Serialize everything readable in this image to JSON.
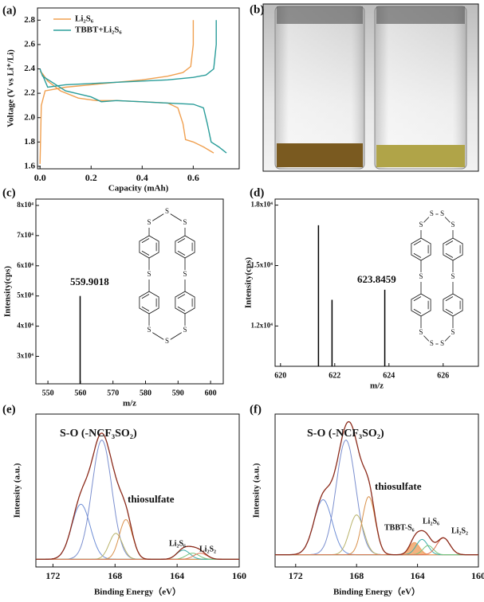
{
  "photo_label": "(b)",
  "structure_atom": "S",
  "chart_data": [
    {
      "type": "line",
      "label": "(a)",
      "x_label": "Capacity (mAh)",
      "y_label": "Voltage (V vs Li⁺/Li)",
      "xlim": [
        -0.01,
        0.78
      ],
      "ylim": [
        1.58,
        2.9
      ],
      "xticks": [
        {
          "value": 0,
          "label": "0.0"
        },
        0.2,
        0.4,
        0.6
      ],
      "yticks": [
        1.6,
        1.8,
        {
          "value": 2,
          "label": "2.0"
        },
        2.2,
        2.4,
        2.6,
        2.8
      ],
      "legend": "top-left",
      "series": [
        {
          "name": "Li₂S₆",
          "color": "#f0a050",
          "x": [
            0,
            0.01,
            0.03,
            0.08,
            0.15,
            0.22,
            0.3,
            0.4,
            0.5,
            0.54,
            0.56,
            0.57,
            0.6,
            0.64,
            0.68,
            null,
            0,
            0.005,
            0.02,
            0.1,
            0.2,
            0.3,
            0.4,
            0.5,
            0.56,
            0.59,
            0.6,
            0.6
          ],
          "values": [
            2.38,
            2.36,
            2.3,
            2.22,
            2.16,
            2.14,
            2.14,
            2.13,
            2.12,
            2.08,
            1.95,
            1.82,
            1.8,
            1.76,
            1.71,
            null,
            1.62,
            2.1,
            2.22,
            2.25,
            2.27,
            2.29,
            2.31,
            2.34,
            2.37,
            2.42,
            2.6,
            2.8
          ]
        },
        {
          "name": "TBBT+Li₂S₆",
          "color": "#2a9d9a",
          "x": [
            0,
            0.01,
            0.04,
            0.1,
            0.2,
            0.24,
            0.3,
            0.4,
            0.5,
            0.6,
            0.64,
            0.655,
            0.67,
            0.7,
            0.73,
            null,
            0.01,
            0.03,
            0.1,
            0.2,
            0.3,
            0.4,
            0.5,
            0.6,
            0.65,
            0.68,
            0.69,
            0.69
          ],
          "values": [
            2.4,
            2.34,
            2.3,
            2.22,
            2.17,
            2.13,
            2.14,
            2.13,
            2.12,
            2.11,
            2.08,
            1.95,
            1.8,
            1.76,
            1.71,
            null,
            2.35,
            2.25,
            2.27,
            2.28,
            2.29,
            2.3,
            2.31,
            2.33,
            2.35,
            2.4,
            2.6,
            2.8
          ]
        }
      ]
    },
    {
      "type": "stem",
      "label": "(c)",
      "x_label": "m/z",
      "y_label": "Intensity(cps)",
      "xlim": [
        546.3,
        603.9
      ],
      "ylim": [
        20900,
        82100
      ],
      "xticks": [
        550,
        560,
        570,
        580,
        590,
        600
      ],
      "yticks": [
        {
          "value": 30000,
          "label": "3x10⁴"
        },
        {
          "value": 40000,
          "label": "4x10⁴"
        },
        {
          "value": 50000,
          "label": "5x10⁴"
        },
        {
          "value": 60000,
          "label": "6x10⁴"
        },
        {
          "value": 70000,
          "label": "7x10⁴"
        },
        {
          "value": 80000,
          "label": "8x10⁴"
        }
      ],
      "color": "#000000",
      "x": [
        559.9018
      ],
      "values": [
        50000
      ]
    },
    {
      "type": "stem",
      "label": "(d)",
      "x_label": "m/z",
      "y_label": "Intensity(cps)",
      "xlim": [
        619.8,
        627.3
      ],
      "ylim": [
        10000,
        18300
      ],
      "xticks": [
        620,
        622,
        624,
        626
      ],
      "yticks": [
        {
          "value": 12000,
          "label": "1.2x10⁴"
        },
        {
          "value": 15000,
          "label": "1.5x10⁴"
        },
        {
          "value": 18000,
          "label": "1.8x10⁴"
        }
      ],
      "color": "#000000",
      "x": [
        621.4,
        621.9,
        623.8459
      ],
      "values": [
        17000,
        13300,
        13800
      ]
    },
    {
      "type": "xps",
      "label": "(e)",
      "x_label": "Binding Energy（eV）",
      "y_label": "Intensity (a.u.)",
      "xlim": [
        173.1,
        160
      ],
      "ylim": [
        0,
        100
      ],
      "xticks": [
        172,
        168,
        164,
        160
      ],
      "baseline": 5,
      "envelope_color": "#8b2a1a",
      "annotations": [
        "S-O (-NCF₃SO₂)",
        "thiosulfate",
        "Li₂S₆",
        "Li₂S₂"
      ],
      "peaks": [
        {
          "center": 170.2,
          "height": 36,
          "fwhm": 1.4,
          "color": "#6f8fd6"
        },
        {
          "center": 168.85,
          "height": 78,
          "fwhm": 1.5,
          "color": "#7b8fcf"
        },
        {
          "center": 167.95,
          "height": 17,
          "fwhm": 1.0,
          "color": "#b9b36a"
        },
        {
          "center": 167.3,
          "height": 26,
          "fwhm": 1.0,
          "color": "#d9904a"
        },
        {
          "center": 163.6,
          "height": 6,
          "fwhm": 1.0,
          "color": "#3aaeaa"
        },
        {
          "center": 163.0,
          "height": 4,
          "fwhm": 1.0,
          "color": "#7bc47b"
        },
        {
          "center": 162.5,
          "height": 4,
          "fwhm": 1.0,
          "color": "#e07050"
        }
      ]
    },
    {
      "type": "xps",
      "label": "(f)",
      "x_label": "Binding Energy（eV）",
      "y_label": "Intensity (a.u.)",
      "xlim": [
        173.35,
        160
      ],
      "ylim": [
        0,
        100
      ],
      "xticks": [
        172,
        168,
        164,
        160
      ],
      "baseline": 8,
      "envelope_color": "#8b2a1a",
      "annotations": [
        "S-O (-NCF₃SO₂)",
        "thiosulfate",
        "TBBT-S₆",
        "Li₂S₆",
        "Li₂S₂"
      ],
      "peaks": [
        {
          "center": 170.2,
          "height": 36,
          "fwhm": 1.4,
          "color": "#6f8fd6"
        },
        {
          "center": 168.7,
          "height": 75,
          "fwhm": 1.5,
          "color": "#7b8fcf"
        },
        {
          "center": 168.0,
          "height": 26,
          "fwhm": 1.1,
          "color": "#b9b36a"
        },
        {
          "center": 167.2,
          "height": 38,
          "fwhm": 1.0,
          "color": "#d9904a"
        },
        {
          "center": 164.2,
          "height": 8,
          "fwhm": 0.8,
          "color": "#f0a060",
          "filled": true
        },
        {
          "center": 163.7,
          "height": 10,
          "fwhm": 0.9,
          "color": "#3aaeaa"
        },
        {
          "center": 163.3,
          "height": 6,
          "fwhm": 0.8,
          "color": "#7bc47b"
        },
        {
          "center": 162.3,
          "height": 11,
          "fwhm": 1.0,
          "color": "#e07050"
        }
      ]
    }
  ]
}
